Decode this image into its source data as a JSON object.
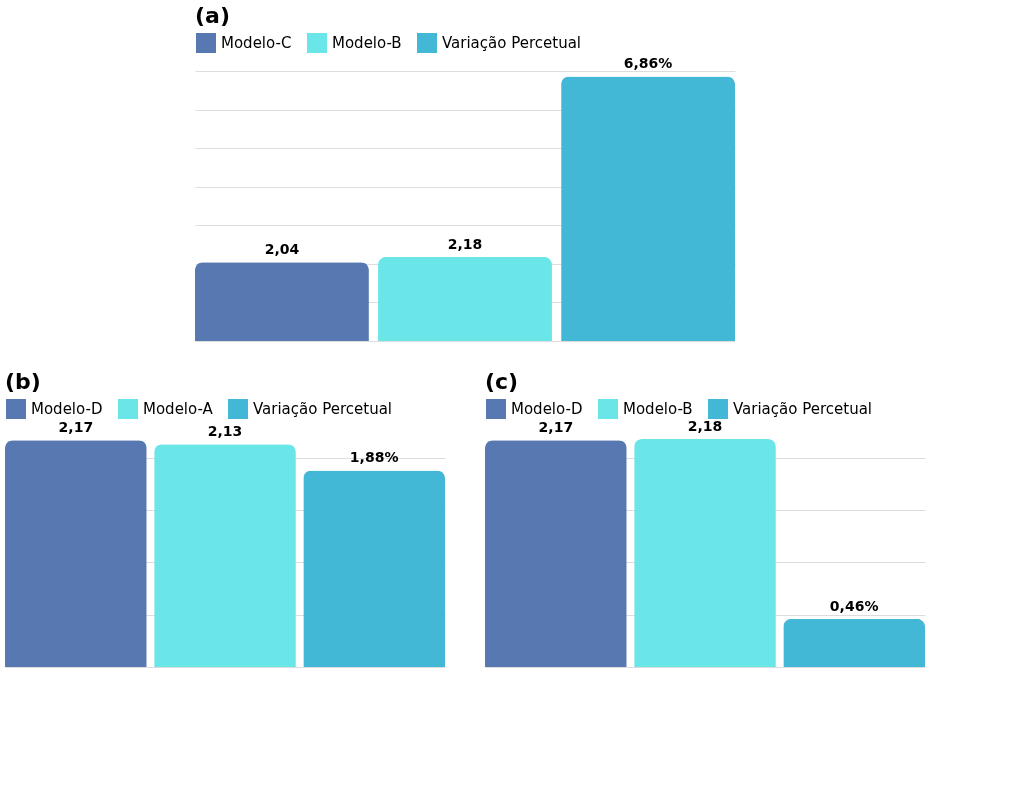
{
  "chart_data": [
    {
      "type": "bar",
      "title": "(a)",
      "categories": [
        null
      ],
      "grid": "y",
      "legend": "top",
      "tick_labels": false,
      "series": [
        {
          "name": "Modelo-C",
          "color": "#5778b0",
          "values": [
            2.04
          ],
          "value_labels": [
            "2,04"
          ]
        },
        {
          "name": "Modelo-B",
          "color": "#6ae5e8",
          "values": [
            2.18
          ],
          "value_labels": [
            "2,18"
          ]
        },
        {
          "name": "Variação Percetual",
          "color": "#42b7d6",
          "values": [
            6.86
          ],
          "value_labels": [
            "6,86%"
          ]
        }
      ]
    },
    {
      "type": "bar",
      "title": "(b)",
      "categories": [
        null
      ],
      "grid": "y",
      "legend": "top",
      "tick_labels": false,
      "series": [
        {
          "name": "Modelo-D",
          "color": "#5778b0",
          "values": [
            2.17
          ],
          "value_labels": [
            "2,17"
          ]
        },
        {
          "name": "Modelo-A",
          "color": "#6ae5e8",
          "values": [
            2.13
          ],
          "value_labels": [
            "2,13"
          ]
        },
        {
          "name": "Variação Percetual",
          "color": "#42b7d6",
          "values": [
            1.88
          ],
          "value_labels": [
            "1,88%"
          ]
        }
      ]
    },
    {
      "type": "bar",
      "title": "(c)",
      "categories": [
        null
      ],
      "grid": "y",
      "legend": "top",
      "tick_labels": false,
      "series": [
        {
          "name": "Modelo-D",
          "color": "#5778b0",
          "values": [
            2.17
          ],
          "value_labels": [
            "2,17"
          ]
        },
        {
          "name": "Modelo-B",
          "color": "#6ae5e8",
          "values": [
            2.18
          ],
          "value_labels": [
            "2,18"
          ]
        },
        {
          "name": "Variação Percetual",
          "color": "#42b7d6",
          "values": [
            0.46
          ],
          "value_labels": [
            "0,46%"
          ]
        }
      ]
    }
  ]
}
